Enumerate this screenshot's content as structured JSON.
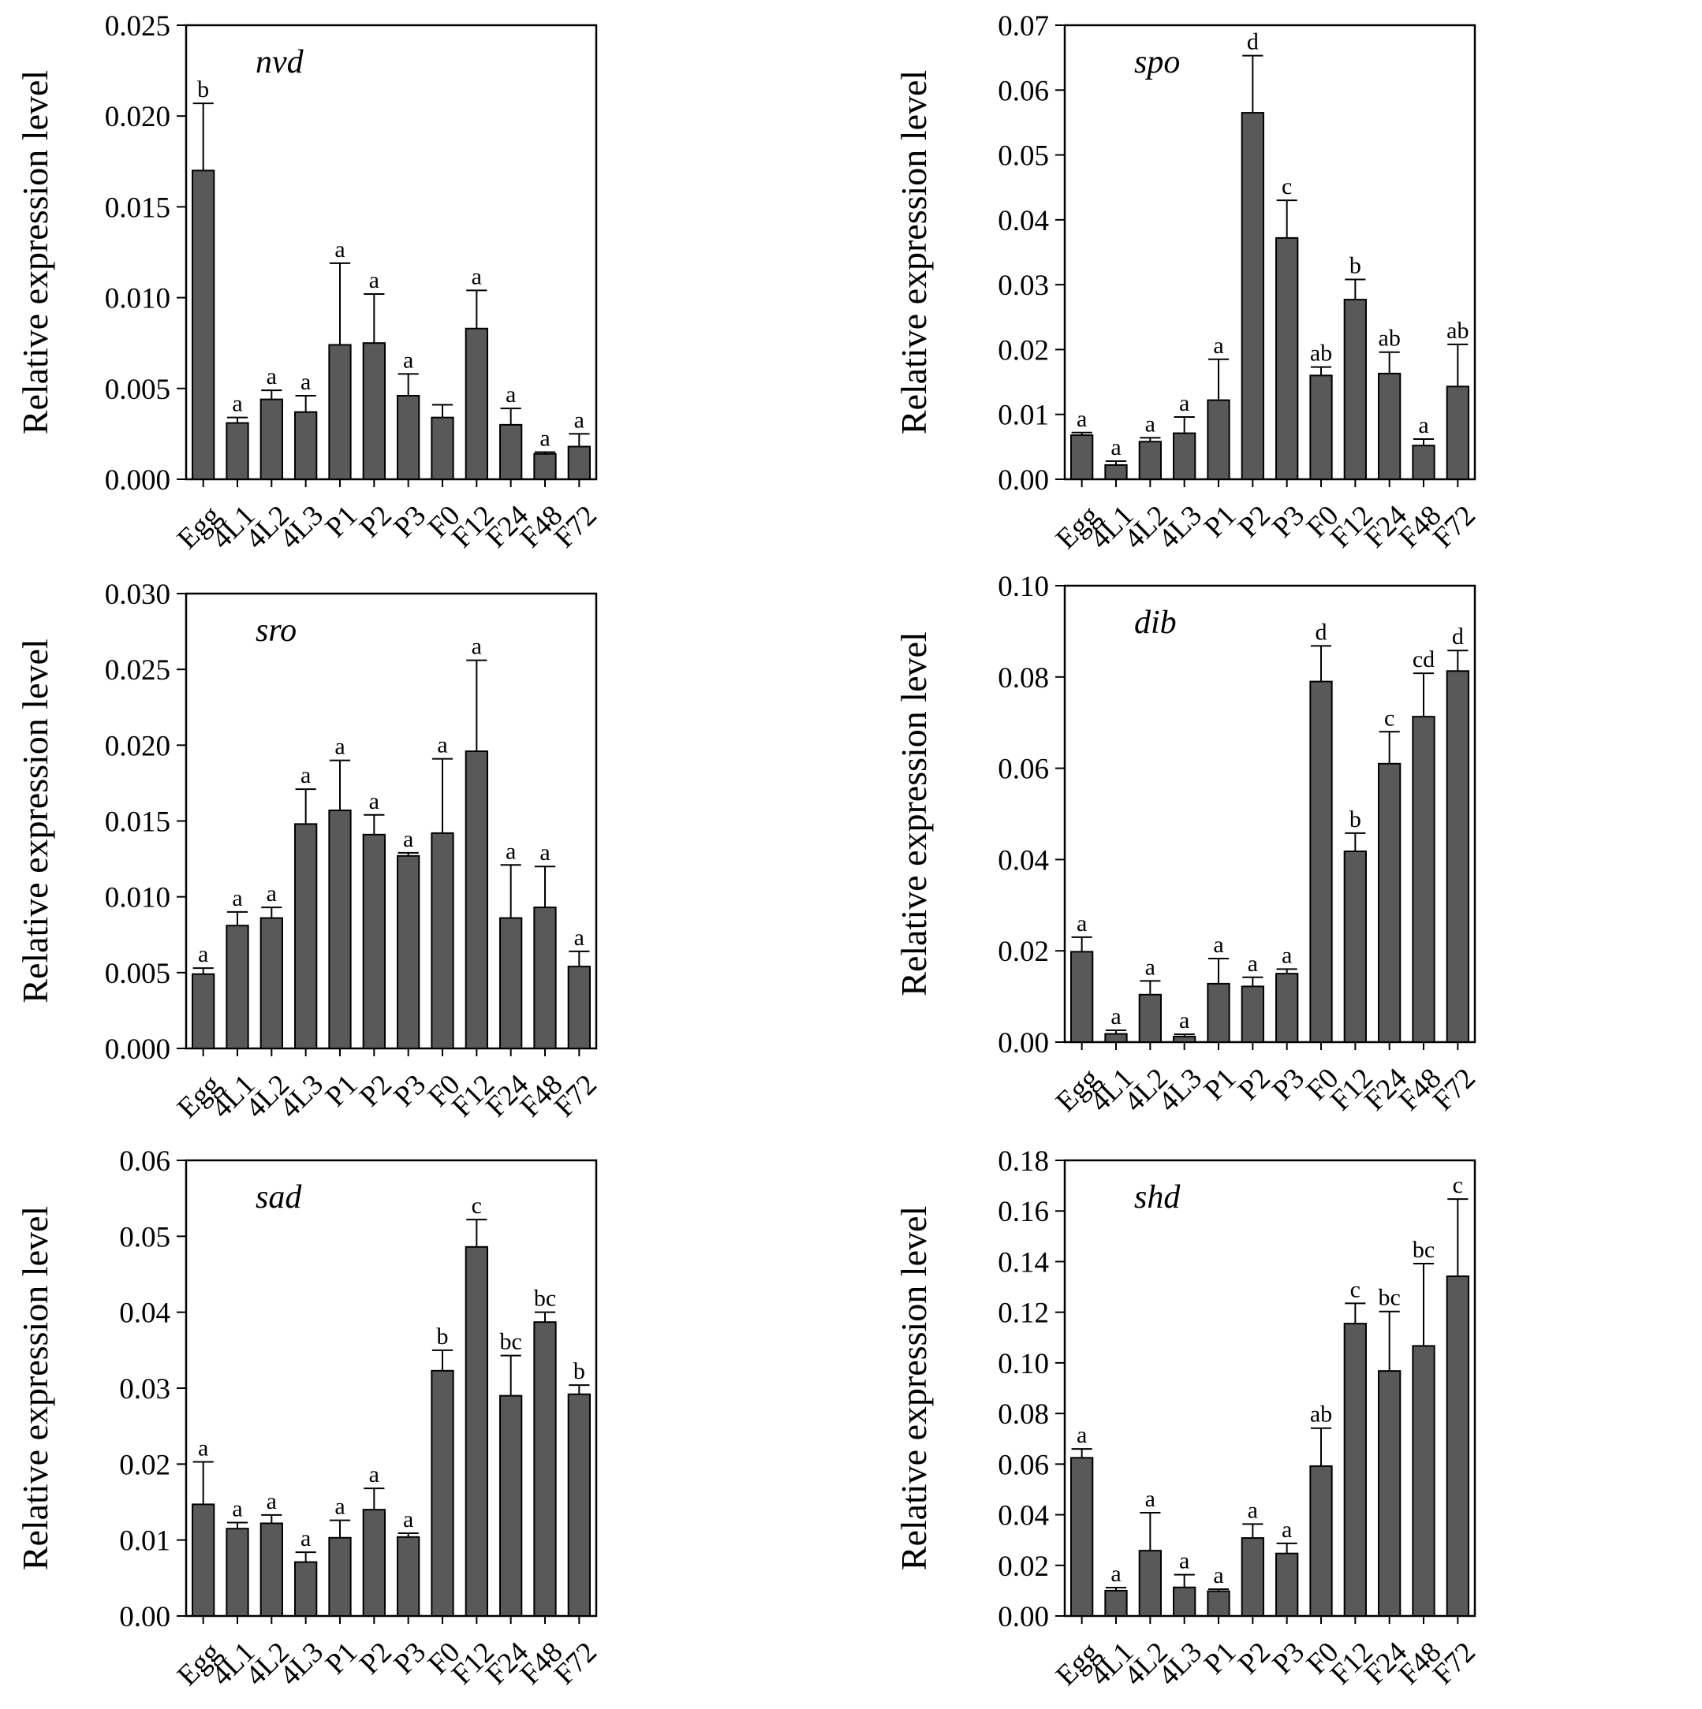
{
  "chart_data": [
    {
      "type": "bar",
      "title": "nvd",
      "ylabel": "Relative expression level",
      "categories": [
        "Egg",
        "4L1",
        "4L2",
        "4L3",
        "P1",
        "P2",
        "P3",
        "F0",
        "F12",
        "F24",
        "F48",
        "F72"
      ],
      "values": [
        0.017,
        0.0031,
        0.0044,
        0.0037,
        0.0074,
        0.0075,
        0.0046,
        0.0034,
        0.0083,
        0.003,
        0.0014,
        0.0018
      ],
      "errors": [
        0.0037,
        0.0003,
        0.0005,
        0.0009,
        0.0045,
        0.0027,
        0.0012,
        0.0007,
        0.0021,
        0.0009,
        0.0001,
        0.0007
      ],
      "letters": [
        "b",
        "a",
        "a",
        "a",
        "a",
        "a",
        "a",
        "",
        "a",
        "a",
        "a",
        "a"
      ],
      "ylim": [
        0,
        0.025
      ],
      "yticks": [
        "0.000",
        "0.005",
        "0.010",
        "0.015",
        "0.020",
        "0.025"
      ]
    },
    {
      "type": "bar",
      "title": "spo",
      "ylabel": "Relative expression level",
      "categories": [
        "Egg",
        "4L1",
        "4L2",
        "4L3",
        "P1",
        "P2",
        "P3",
        "F0",
        "F12",
        "F24",
        "F48",
        "F72"
      ],
      "values": [
        0.0068,
        0.0022,
        0.0058,
        0.0071,
        0.0122,
        0.0565,
        0.0372,
        0.016,
        0.0277,
        0.0163,
        0.0052,
        0.0143
      ],
      "errors": [
        0.0004,
        0.0006,
        0.0006,
        0.0025,
        0.0063,
        0.0088,
        0.0058,
        0.0013,
        0.0031,
        0.0033,
        0.001,
        0.0065
      ],
      "letters": [
        "a",
        "a",
        "a",
        "a",
        "a",
        "d",
        "c",
        "ab",
        "b",
        "ab",
        "a",
        "ab"
      ],
      "ylim": [
        0,
        0.07
      ],
      "yticks": [
        "0.00",
        "0.01",
        "0.02",
        "0.03",
        "0.04",
        "0.05",
        "0.06",
        "0.07"
      ]
    },
    {
      "type": "bar",
      "title": "sro",
      "ylabel": "Relative expression level",
      "categories": [
        "Egg",
        "4L1",
        "4L2",
        "4L3",
        "P1",
        "P2",
        "P3",
        "F0",
        "F12",
        "F24",
        "F48",
        "F72"
      ],
      "values": [
        0.0049,
        0.0081,
        0.0086,
        0.0148,
        0.0157,
        0.0141,
        0.0127,
        0.0142,
        0.0196,
        0.0086,
        0.0093,
        0.0054
      ],
      "errors": [
        0.0004,
        0.0009,
        0.0007,
        0.0023,
        0.0033,
        0.0013,
        0.0002,
        0.0049,
        0.006,
        0.0035,
        0.0027,
        0.001
      ],
      "letters": [
        "a",
        "a",
        "a",
        "a",
        "a",
        "a",
        "a",
        "a",
        "a",
        "a",
        "a",
        "a"
      ],
      "ylim": [
        0,
        0.03
      ],
      "yticks": [
        "0.000",
        "0.005",
        "0.010",
        "0.015",
        "0.020",
        "0.025",
        "0.030"
      ]
    },
    {
      "type": "bar",
      "title": "dib",
      "ylabel": "Relative expression level",
      "categories": [
        "Egg",
        "4L1",
        "4L2",
        "4L3",
        "P1",
        "P2",
        "P3",
        "F0",
        "F12",
        "F24",
        "F48",
        "F72"
      ],
      "values": [
        0.0198,
        0.0018,
        0.0104,
        0.0012,
        0.0128,
        0.0122,
        0.015,
        0.079,
        0.0418,
        0.061,
        0.0713,
        0.0813
      ],
      "errors": [
        0.0032,
        0.0008,
        0.003,
        0.0005,
        0.0055,
        0.002,
        0.001,
        0.0078,
        0.004,
        0.007,
        0.0095,
        0.0045
      ],
      "letters": [
        "a",
        "a",
        "a",
        "a",
        "a",
        "a",
        "a",
        "d",
        "b",
        "c",
        "cd",
        "d"
      ],
      "ylim": [
        0,
        0.1
      ],
      "yticks": [
        "0.00",
        "0.02",
        "0.04",
        "0.06",
        "0.08",
        "0.10"
      ]
    },
    {
      "type": "bar",
      "title": "sad",
      "ylabel": "Relative expression level",
      "categories": [
        "Egg",
        "4L1",
        "4L2",
        "4L3",
        "P1",
        "P2",
        "P3",
        "F0",
        "F12",
        "F24",
        "F48",
        "F72"
      ],
      "values": [
        0.0147,
        0.0115,
        0.0122,
        0.0071,
        0.0103,
        0.014,
        0.0104,
        0.0323,
        0.0486,
        0.029,
        0.0387,
        0.0292
      ],
      "errors": [
        0.0056,
        0.0008,
        0.0011,
        0.0013,
        0.0023,
        0.0028,
        0.0005,
        0.0027,
        0.0036,
        0.0053,
        0.0013,
        0.0012
      ],
      "letters": [
        "a",
        "a",
        "a",
        "a",
        "a",
        "a",
        "a",
        "b",
        "c",
        "bc",
        "bc",
        "b"
      ],
      "ylim": [
        0,
        0.06
      ],
      "yticks": [
        "0.00",
        "0.01",
        "0.02",
        "0.03",
        "0.04",
        "0.05",
        "0.06"
      ]
    },
    {
      "type": "bar",
      "title": "shd",
      "ylabel": "Relative expression level",
      "categories": [
        "Egg",
        "4L1",
        "4L2",
        "4L3",
        "P1",
        "P2",
        "P3",
        "F0",
        "F12",
        "F24",
        "F48",
        "F72"
      ],
      "values": [
        0.0625,
        0.01,
        0.0258,
        0.0113,
        0.0098,
        0.0308,
        0.0247,
        0.0592,
        0.1155,
        0.0968,
        0.1067,
        0.1342
      ],
      "errors": [
        0.0035,
        0.0012,
        0.015,
        0.005,
        0.0008,
        0.0055,
        0.004,
        0.015,
        0.008,
        0.0235,
        0.0325,
        0.0305
      ],
      "letters": [
        "a",
        "a",
        "a",
        "a",
        "a",
        "a",
        "a",
        "ab",
        "c",
        "bc",
        "bc",
        "c"
      ],
      "ylim": [
        0,
        0.18
      ],
      "yticks": [
        "0.00",
        "0.02",
        "0.04",
        "0.06",
        "0.08",
        "0.10",
        "0.12",
        "0.14",
        "0.16",
        "0.18"
      ]
    }
  ]
}
